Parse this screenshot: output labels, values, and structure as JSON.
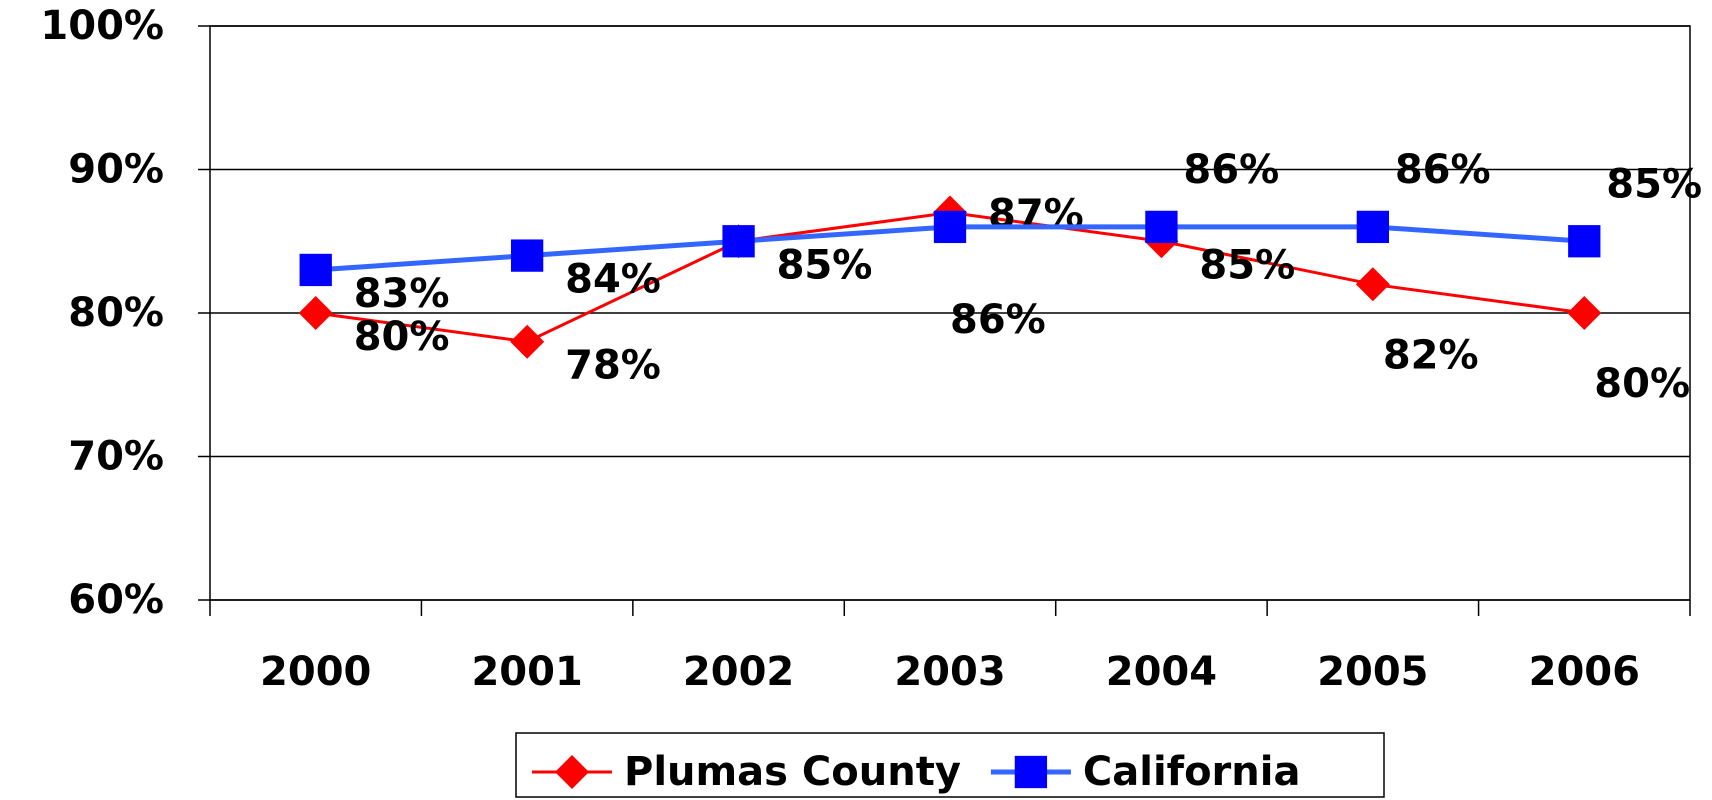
{
  "chart_data": {
    "type": "line",
    "categories": [
      "2000",
      "2001",
      "2002",
      "2003",
      "2004",
      "2005",
      "2006"
    ],
    "series": [
      {
        "name": "Plumas County",
        "color": "#ff0000",
        "marker": "diamond",
        "values": [
          80,
          78,
          85,
          87,
          85,
          82,
          80
        ],
        "value_labels": [
          "80%",
          "78%",
          "85%",
          "87%",
          "85%",
          "82%",
          "80%"
        ]
      },
      {
        "name": "California",
        "color": "#3366ff",
        "marker": "square",
        "marker_color": "#0000ff",
        "values": [
          83,
          84,
          85,
          86,
          86,
          86,
          85
        ],
        "value_labels": [
          "83%",
          "84%",
          "85%",
          "86%",
          "86%",
          "86%",
          "85%"
        ]
      }
    ],
    "ylim": [
      60,
      100
    ],
    "yticks": [
      {
        "value": 60,
        "label": "60%"
      },
      {
        "value": 70,
        "label": "70%"
      },
      {
        "value": 80,
        "label": "80%"
      },
      {
        "value": 90,
        "label": "90%"
      },
      {
        "value": 100,
        "label": "100%"
      }
    ],
    "grid": true,
    "legend": "bottom"
  }
}
